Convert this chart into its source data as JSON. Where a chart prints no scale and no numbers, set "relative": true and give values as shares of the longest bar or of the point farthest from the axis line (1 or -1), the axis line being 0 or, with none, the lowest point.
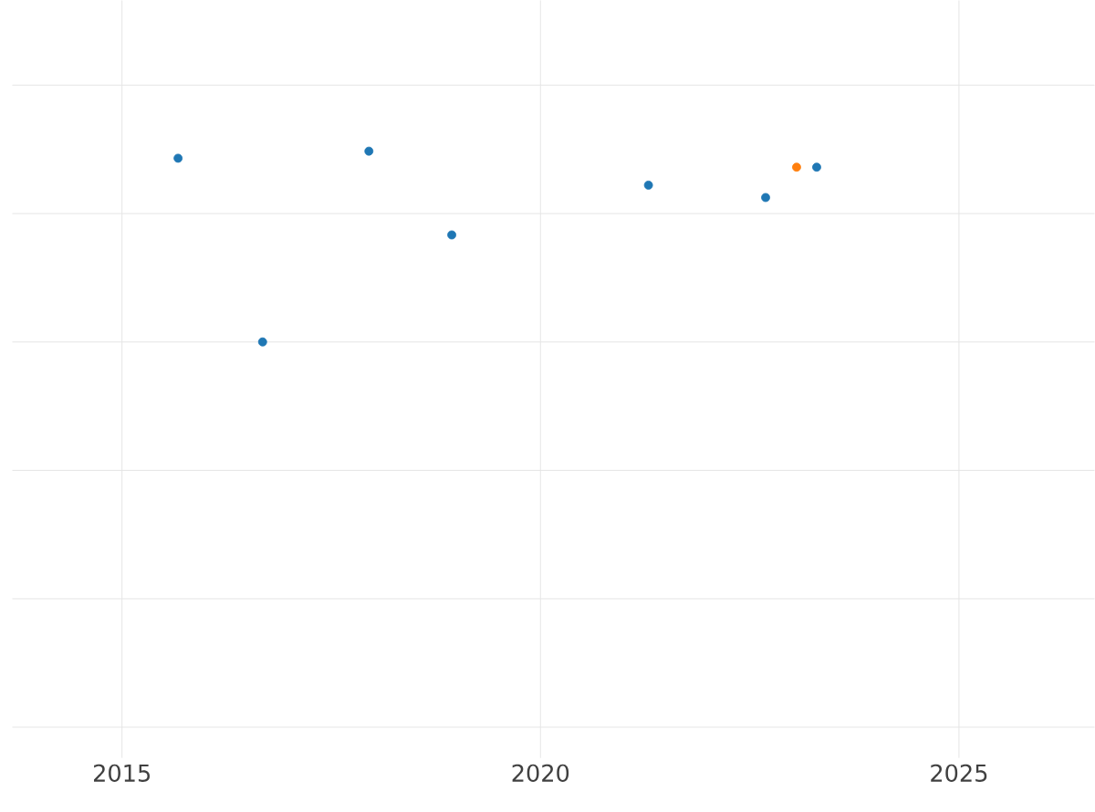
{
  "chart_data": {
    "type": "scatter",
    "relative": true,
    "grid": true,
    "marker": "circle",
    "tick_labels": "x",
    "xlim": [
      2013.69,
      2026.62
    ],
    "xticks": [
      2015,
      2020,
      2025
    ],
    "series": [
      {
        "color": "#1f77b4",
        "x": [
          2015.67,
          2016.68,
          2017.95,
          2018.94,
          2021.29,
          2022.69,
          2023.3
        ],
        "values": [
          0.963,
          0,
          1,
          0.561,
          0.822,
          0.757,
          0.916
        ]
      },
      {
        "color": "#ff7f0e",
        "x": [
          2023.06
        ],
        "values": [
          0.916
        ]
      }
    ]
  }
}
